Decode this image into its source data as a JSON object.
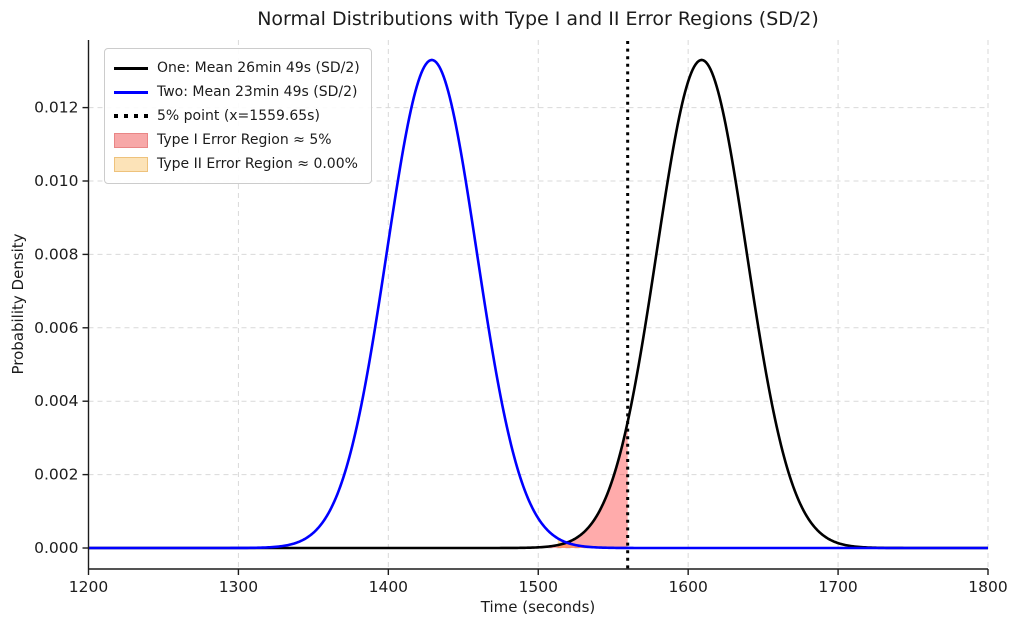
{
  "chart_data": {
    "type": "line",
    "title": "Normal Distributions with Type I and II Error Regions (SD/2)",
    "xlabel": "Time (seconds)",
    "ylabel": "Probability Density",
    "xlim": [
      1200,
      1800
    ],
    "ylim": [
      -0.000572,
      0.013842
    ],
    "x_ticks": [
      1200,
      1300,
      1400,
      1500,
      1600,
      1700,
      1800
    ],
    "y_ticks": [
      0.0,
      0.002,
      0.004,
      0.006,
      0.008,
      0.01,
      0.012
    ],
    "y_tick_labels": [
      "0.000",
      "0.002",
      "0.004",
      "0.006",
      "0.008",
      "0.010",
      "0.012"
    ],
    "grid": {
      "show": true,
      "style": "dashed",
      "color": "#d9d9d9"
    },
    "legend_position": "upper-left",
    "series": [
      {
        "name": "One: Mean 26min 49s (SD/2)",
        "color": "#000000",
        "distribution": "normal",
        "mean_seconds": 1609,
        "sd_seconds": 30,
        "peak_density": 0.0133
      },
      {
        "name": "Two: Mean 23min 49s (SD/2)",
        "color": "#0000ff",
        "distribution": "normal",
        "mean_seconds": 1429,
        "sd_seconds": 30,
        "peak_density": 0.0133
      }
    ],
    "cutoff_line": {
      "label": "5% point (x=1559.65s)",
      "x": 1559.65,
      "style": "dotted",
      "color": "#000000"
    },
    "regions": [
      {
        "label": "Type I Error Region ≈ 5%",
        "approx_value": "5%",
        "fill_color": "#ff0000",
        "alpha": 0.33,
        "legend_fill": "#f7a8a8",
        "legend_edge": "#e98686",
        "under_series": "One: Mean 26min 49s (SD/2)",
        "x_start": 1200,
        "x_end": 1559.65
      },
      {
        "label": "Type II Error Region ≈ 0.00%",
        "approx_value": "0.00%",
        "fill_color": "#ffa500",
        "alpha": 0.38,
        "legend_fill": "#fce3b8",
        "legend_edge": "#eec27c",
        "under_series": "Two: Mean 23min 49s (SD/2)",
        "x_start": 1513,
        "x_end": 1559.65
      }
    ]
  }
}
